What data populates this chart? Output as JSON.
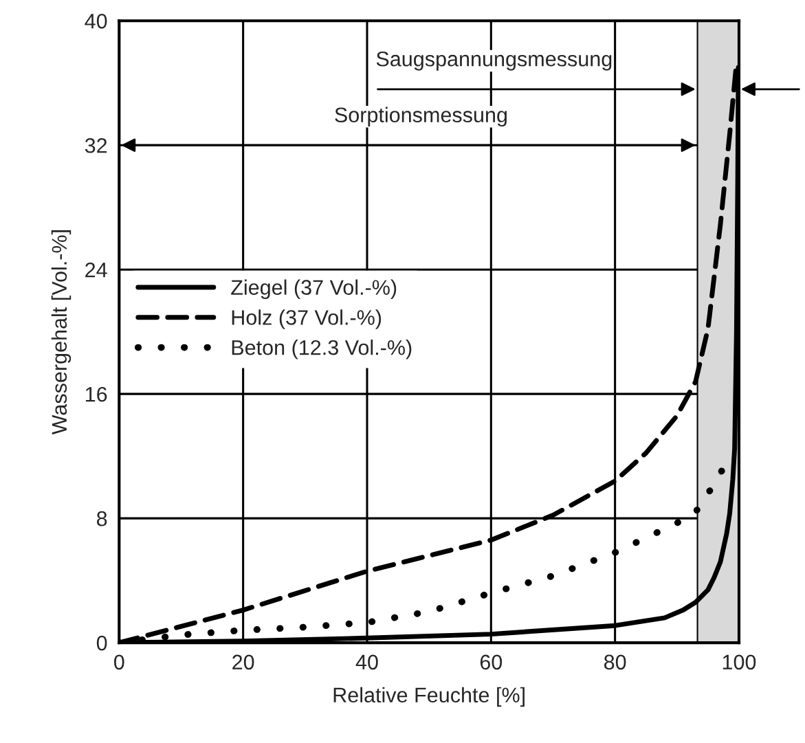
{
  "chart_data": {
    "type": "line",
    "xlabel": "Relative Feuchte [%]",
    "ylabel": "Wassergehalt [Vol.-%]",
    "xlim": [
      0,
      100
    ],
    "ylim": [
      0,
      40
    ],
    "xticks": [
      0,
      20,
      40,
      60,
      80,
      100
    ],
    "yticks": [
      0,
      8,
      16,
      24,
      32,
      40
    ],
    "grid": true,
    "legend": "center left",
    "bands": [
      {
        "axis": "x",
        "from": 93.3,
        "to": 100,
        "color": "#d9d9d9"
      }
    ],
    "annotations": [
      "Saugspannungsmessung",
      "Sorptionsmessung"
    ],
    "series": [
      {
        "name": "Ziegel (37 Vol.-%)",
        "color": "#000000",
        "line_style": "solid",
        "x": [
          0,
          20,
          40,
          60,
          80,
          88,
          91,
          93,
          95,
          96,
          97,
          98,
          98.5,
          99,
          99.3,
          99.6,
          99.8,
          99.9
        ],
        "values": [
          0,
          0.1,
          0.3,
          0.55,
          1.1,
          1.6,
          2.1,
          2.6,
          3.4,
          4.2,
          5.2,
          7,
          8.3,
          10.5,
          12.5,
          20,
          30,
          37
        ]
      },
      {
        "name": "Holz (37 Vol.-%)",
        "color": "#000000",
        "line_style": "dashed",
        "x": [
          0,
          20,
          40,
          60,
          70,
          80,
          85,
          90,
          93,
          95,
          97,
          98.5,
          99.5
        ],
        "values": [
          0,
          2.1,
          4.6,
          6.6,
          8.2,
          10.4,
          12.2,
          14.6,
          16.8,
          20.2,
          26.9,
          32.7,
          36.9
        ]
      },
      {
        "name": "Beton (12.3 Vol.-%)",
        "color": "#000000",
        "line_style": "dotted",
        "x": [
          0,
          10,
          20,
          30,
          40,
          50,
          60,
          70,
          80,
          90,
          93,
          96,
          98,
          99
        ],
        "values": [
          0,
          0.5,
          0.8,
          1.0,
          1.3,
          2.0,
          3.2,
          4.3,
          5.8,
          7.7,
          8.4,
          10.2,
          11.6,
          12.3
        ]
      }
    ]
  }
}
